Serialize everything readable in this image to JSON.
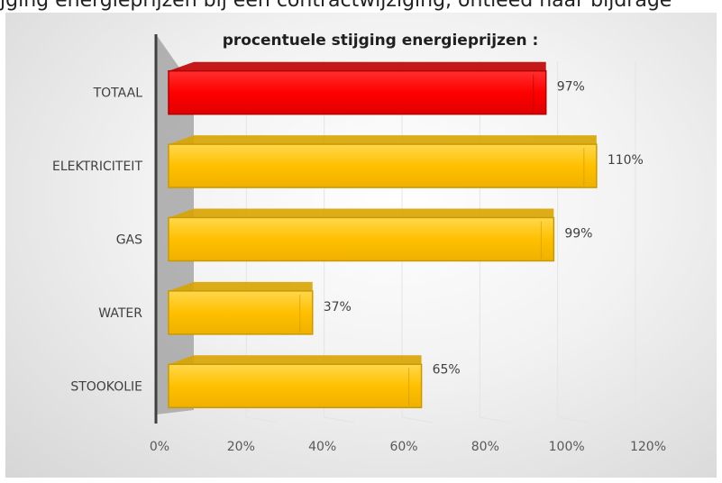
{
  "header_text": "jging energieprijzen bij een contractwijziging, ontleed naar bijdrage",
  "chart_data": {
    "type": "bar",
    "orientation": "horizontal",
    "title": "procentuele stijging energieprijzen :",
    "categories": [
      "TOTAAL",
      "ELEKTRICITEIT",
      "GAS",
      "WATER",
      "STOOKOLIE"
    ],
    "values": [
      97,
      110,
      99,
      37,
      65
    ],
    "value_labels": [
      "97%",
      "110%",
      "99%",
      "37%",
      "65%"
    ],
    "xlim": [
      0,
      120
    ],
    "xticks": [
      "0%",
      "20%",
      "40%",
      "60%",
      "80%",
      "100%",
      "120%"
    ],
    "grid": true,
    "legend": "none",
    "colors": {
      "highlight": "#ff0000",
      "default": "#ffc000"
    }
  }
}
